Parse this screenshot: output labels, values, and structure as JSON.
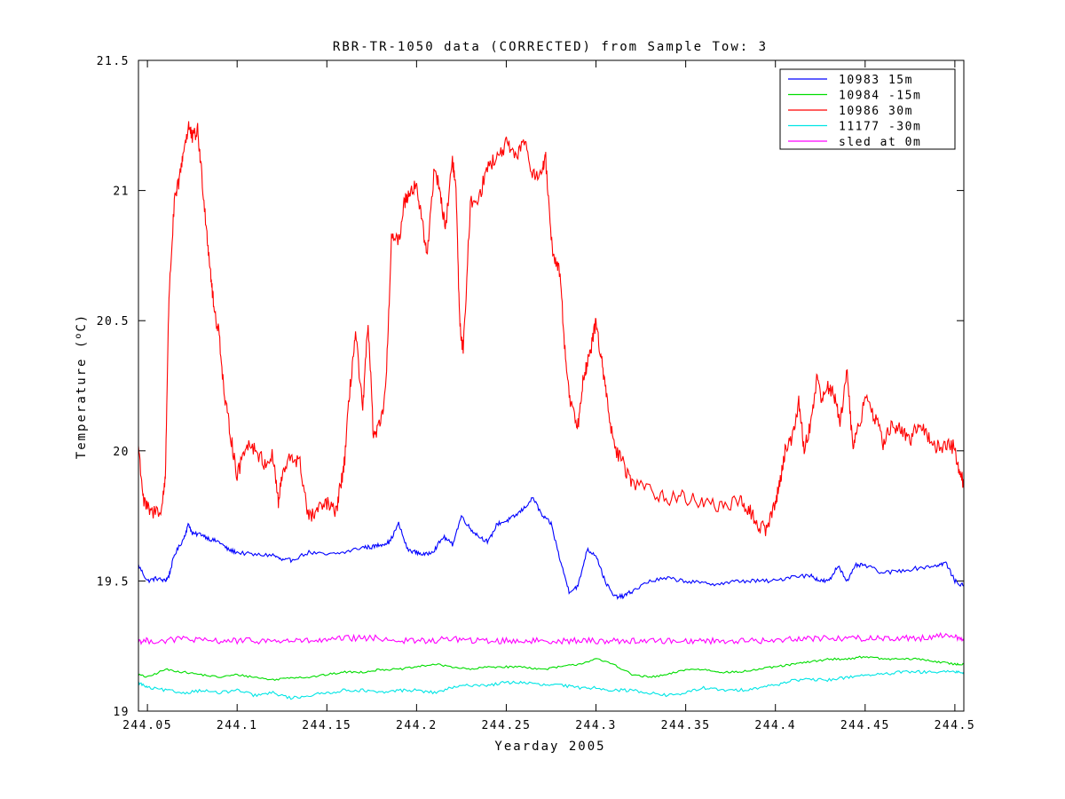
{
  "chart_data": {
    "type": "line",
    "title": "RBR-TR-1050 data (CORRECTED) from Sample Tow: 3",
    "xlabel": "Yearday 2005",
    "ylabel": "Temperature (",
    "ylabel_sup": "o",
    "ylabel_unit": "C)",
    "xlim": [
      244.045,
      244.505
    ],
    "ylim": [
      19,
      21.5
    ],
    "xticks": [
      244.05,
      244.1,
      244.15,
      244.2,
      244.25,
      244.3,
      244.35,
      244.4,
      244.45,
      244.5
    ],
    "xtick_labels": [
      "244.05",
      "244.1",
      "244.15",
      "244.2",
      "244.25",
      "244.3",
      "244.35",
      "244.4",
      "244.45",
      "244.5"
    ],
    "yticks": [
      19,
      19.5,
      20,
      20.5,
      21,
      21.5
    ],
    "ytick_labels": [
      "19",
      "19.5",
      "20",
      "20.5",
      "21",
      "21.5"
    ],
    "grid": false,
    "legend_position": "top-right",
    "series": [
      {
        "name": "10983 15m",
        "color": "#0000ff",
        "noise": 0.008,
        "x": [
          244.045,
          244.05,
          244.055,
          244.06,
          244.062,
          244.065,
          244.07,
          244.073,
          244.075,
          244.08,
          244.085,
          244.09,
          244.095,
          244.1,
          244.11,
          244.12,
          244.125,
          244.13,
          244.14,
          244.15,
          244.16,
          244.17,
          244.175,
          244.18,
          244.185,
          244.19,
          244.195,
          244.2,
          244.205,
          244.21,
          244.215,
          244.22,
          244.225,
          244.23,
          244.235,
          244.24,
          244.245,
          244.25,
          244.255,
          244.26,
          244.265,
          244.27,
          244.275,
          244.28,
          244.285,
          244.29,
          244.295,
          244.3,
          244.305,
          244.31,
          244.315,
          244.32,
          244.33,
          244.34,
          244.35,
          244.36,
          244.37,
          244.38,
          244.39,
          244.4,
          244.41,
          244.42,
          244.425,
          244.43,
          244.435,
          244.44,
          244.445,
          244.45,
          244.46,
          244.47,
          244.48,
          244.49,
          244.495,
          244.5,
          244.505
        ],
        "y": [
          19.56,
          19.5,
          19.51,
          19.5,
          19.52,
          19.6,
          19.66,
          19.72,
          19.68,
          19.68,
          19.66,
          19.65,
          19.62,
          19.61,
          19.6,
          19.6,
          19.58,
          19.58,
          19.61,
          19.6,
          19.61,
          19.63,
          19.63,
          19.64,
          19.65,
          19.72,
          19.62,
          19.61,
          19.6,
          19.62,
          19.67,
          19.64,
          19.75,
          19.7,
          19.67,
          19.65,
          19.72,
          19.73,
          19.75,
          19.78,
          19.82,
          19.75,
          19.72,
          19.58,
          19.46,
          19.48,
          19.62,
          19.6,
          19.5,
          19.44,
          19.44,
          19.46,
          19.5,
          19.51,
          19.5,
          19.49,
          19.49,
          19.5,
          19.5,
          19.5,
          19.52,
          19.52,
          19.5,
          19.5,
          19.56,
          19.5,
          19.56,
          19.56,
          19.53,
          19.54,
          19.55,
          19.56,
          19.57,
          19.5,
          19.48
        ]
      },
      {
        "name": "10984 -15m",
        "color": "#00dd00",
        "noise": 0.004,
        "x": [
          244.045,
          244.05,
          244.06,
          244.07,
          244.08,
          244.09,
          244.1,
          244.11,
          244.12,
          244.13,
          244.14,
          244.15,
          244.16,
          244.17,
          244.18,
          244.19,
          244.2,
          244.21,
          244.22,
          244.23,
          244.24,
          244.25,
          244.26,
          244.27,
          244.28,
          244.29,
          244.3,
          244.31,
          244.32,
          244.33,
          244.34,
          244.35,
          244.36,
          244.37,
          244.38,
          244.39,
          244.4,
          244.41,
          244.42,
          244.43,
          244.44,
          244.45,
          244.46,
          244.47,
          244.48,
          244.49,
          244.5,
          244.505
        ],
        "y": [
          19.14,
          19.13,
          19.16,
          19.15,
          19.14,
          19.13,
          19.14,
          19.13,
          19.12,
          19.13,
          19.13,
          19.14,
          19.15,
          19.15,
          19.16,
          19.16,
          19.17,
          19.18,
          19.17,
          19.16,
          19.17,
          19.17,
          19.17,
          19.16,
          19.17,
          19.18,
          19.2,
          19.18,
          19.14,
          19.13,
          19.14,
          19.16,
          19.16,
          19.15,
          19.15,
          19.16,
          19.17,
          19.18,
          19.19,
          19.2,
          19.2,
          19.21,
          19.2,
          19.2,
          19.2,
          19.19,
          19.18,
          19.18
        ]
      },
      {
        "name": "10986 30m",
        "color": "#ff0000",
        "noise": 0.03,
        "x": [
          244.045,
          244.048,
          244.052,
          244.058,
          244.06,
          244.062,
          244.065,
          244.068,
          244.07,
          244.073,
          244.075,
          244.078,
          244.08,
          244.083,
          244.085,
          244.087,
          244.09,
          244.093,
          244.096,
          244.1,
          244.105,
          244.11,
          244.115,
          244.12,
          244.123,
          244.125,
          244.13,
          244.135,
          244.14,
          244.145,
          244.15,
          244.155,
          244.158,
          244.16,
          244.163,
          244.166,
          244.17,
          244.173,
          244.176,
          244.18,
          244.183,
          244.186,
          244.19,
          244.193,
          244.196,
          244.2,
          244.203,
          244.206,
          244.21,
          244.213,
          244.216,
          244.22,
          244.222,
          244.224,
          244.226,
          244.23,
          244.235,
          244.24,
          244.245,
          244.25,
          244.255,
          244.26,
          244.265,
          244.27,
          244.272,
          244.275,
          244.278,
          244.28,
          244.283,
          244.286,
          244.29,
          244.293,
          244.295,
          244.298,
          244.3,
          244.303,
          244.306,
          244.31,
          244.315,
          244.32,
          244.33,
          244.34,
          244.35,
          244.36,
          244.37,
          244.38,
          244.385,
          244.39,
          244.395,
          244.4,
          244.403,
          244.406,
          244.41,
          244.413,
          244.416,
          244.42,
          244.423,
          244.426,
          244.43,
          244.433,
          244.436,
          244.44,
          244.443,
          244.446,
          244.45,
          244.455,
          244.46,
          244.465,
          244.47,
          244.475,
          244.48,
          244.485,
          244.49,
          244.495,
          244.5,
          244.503,
          244.505
        ],
        "y": [
          20.02,
          19.8,
          19.76,
          19.78,
          19.9,
          20.6,
          20.95,
          21.05,
          21.15,
          21.25,
          21.2,
          21.23,
          21.08,
          20.85,
          20.7,
          20.55,
          20.45,
          20.2,
          20.08,
          19.9,
          20.03,
          20.01,
          19.95,
          19.98,
          19.8,
          19.9,
          19.98,
          19.95,
          19.74,
          19.77,
          19.8,
          19.76,
          19.88,
          19.97,
          20.25,
          20.45,
          20.15,
          20.5,
          20.05,
          20.1,
          20.25,
          20.82,
          20.8,
          20.95,
          21.0,
          21.02,
          20.88,
          20.75,
          21.1,
          21.0,
          20.85,
          21.12,
          21.0,
          20.5,
          20.38,
          20.95,
          20.98,
          21.1,
          21.12,
          21.18,
          21.12,
          21.2,
          21.05,
          21.08,
          21.12,
          20.8,
          20.72,
          20.68,
          20.35,
          20.18,
          20.1,
          20.3,
          20.32,
          20.42,
          20.5,
          20.35,
          20.2,
          20.02,
          19.95,
          19.88,
          19.85,
          19.82,
          19.82,
          19.8,
          19.79,
          19.8,
          19.78,
          19.71,
          19.7,
          19.8,
          19.9,
          20.02,
          20.06,
          20.2,
          20.0,
          20.12,
          20.28,
          20.2,
          20.25,
          20.2,
          20.12,
          20.3,
          20.02,
          20.08,
          20.2,
          20.14,
          20.03,
          20.1,
          20.08,
          20.03,
          20.12,
          20.05,
          20.01,
          20.03,
          20.01,
          19.9,
          19.88
        ]
      },
      {
        "name": "11177 -30m",
        "color": "#00e5e5",
        "noise": 0.006,
        "x": [
          244.045,
          244.05,
          244.06,
          244.07,
          244.08,
          244.09,
          244.1,
          244.11,
          244.12,
          244.13,
          244.14,
          244.15,
          244.16,
          244.17,
          244.18,
          244.19,
          244.2,
          244.21,
          244.22,
          244.23,
          244.24,
          244.25,
          244.26,
          244.27,
          244.28,
          244.29,
          244.3,
          244.31,
          244.32,
          244.33,
          244.34,
          244.35,
          244.36,
          244.37,
          244.38,
          244.39,
          244.4,
          244.41,
          244.42,
          244.43,
          244.44,
          244.45,
          244.46,
          244.47,
          244.48,
          244.49,
          244.5,
          244.505
        ],
        "y": [
          19.11,
          19.09,
          19.08,
          19.07,
          19.08,
          19.07,
          19.08,
          19.06,
          19.07,
          19.05,
          19.06,
          19.07,
          19.08,
          19.08,
          19.07,
          19.08,
          19.08,
          19.07,
          19.09,
          19.1,
          19.1,
          19.11,
          19.11,
          19.1,
          19.1,
          19.09,
          19.09,
          19.08,
          19.08,
          19.07,
          19.06,
          19.07,
          19.09,
          19.08,
          19.08,
          19.09,
          19.1,
          19.12,
          19.12,
          19.12,
          19.13,
          19.14,
          19.14,
          19.15,
          19.15,
          19.15,
          19.15,
          19.15
        ]
      },
      {
        "name": "sled at 0m",
        "color": "#ff00ff",
        "noise": 0.012,
        "x": [
          244.045,
          244.05,
          244.06,
          244.07,
          244.08,
          244.09,
          244.1,
          244.11,
          244.12,
          244.13,
          244.14,
          244.15,
          244.16,
          244.17,
          244.18,
          244.19,
          244.2,
          244.21,
          244.22,
          244.23,
          244.24,
          244.25,
          244.26,
          244.27,
          244.28,
          244.29,
          244.3,
          244.31,
          244.32,
          244.33,
          244.34,
          244.35,
          244.36,
          244.37,
          244.38,
          244.39,
          244.4,
          244.41,
          244.42,
          244.43,
          244.44,
          244.45,
          244.46,
          244.47,
          244.48,
          244.49,
          244.5,
          244.505
        ],
        "y": [
          19.27,
          19.27,
          19.27,
          19.28,
          19.27,
          19.27,
          19.27,
          19.27,
          19.27,
          19.27,
          19.27,
          19.27,
          19.28,
          19.28,
          19.28,
          19.27,
          19.27,
          19.27,
          19.28,
          19.27,
          19.27,
          19.27,
          19.27,
          19.27,
          19.27,
          19.27,
          19.27,
          19.27,
          19.27,
          19.27,
          19.27,
          19.27,
          19.27,
          19.27,
          19.27,
          19.27,
          19.27,
          19.28,
          19.28,
          19.28,
          19.28,
          19.28,
          19.28,
          19.28,
          19.28,
          19.29,
          19.29,
          19.27
        ]
      }
    ]
  }
}
